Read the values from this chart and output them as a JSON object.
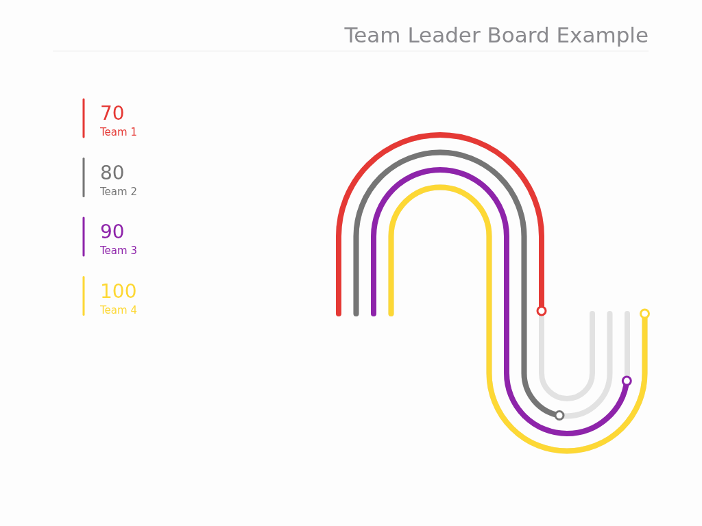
{
  "chart_data": {
    "type": "other",
    "title": "Team Leader Board Example",
    "categories": [
      "Team 1",
      "Team 2",
      "Team 3",
      "Team 4"
    ],
    "values": [
      70,
      80,
      90,
      100
    ],
    "colors": [
      "#e53935",
      "#757575",
      "#8e24aa",
      "#fdd835"
    ],
    "data_labels": true
  }
}
